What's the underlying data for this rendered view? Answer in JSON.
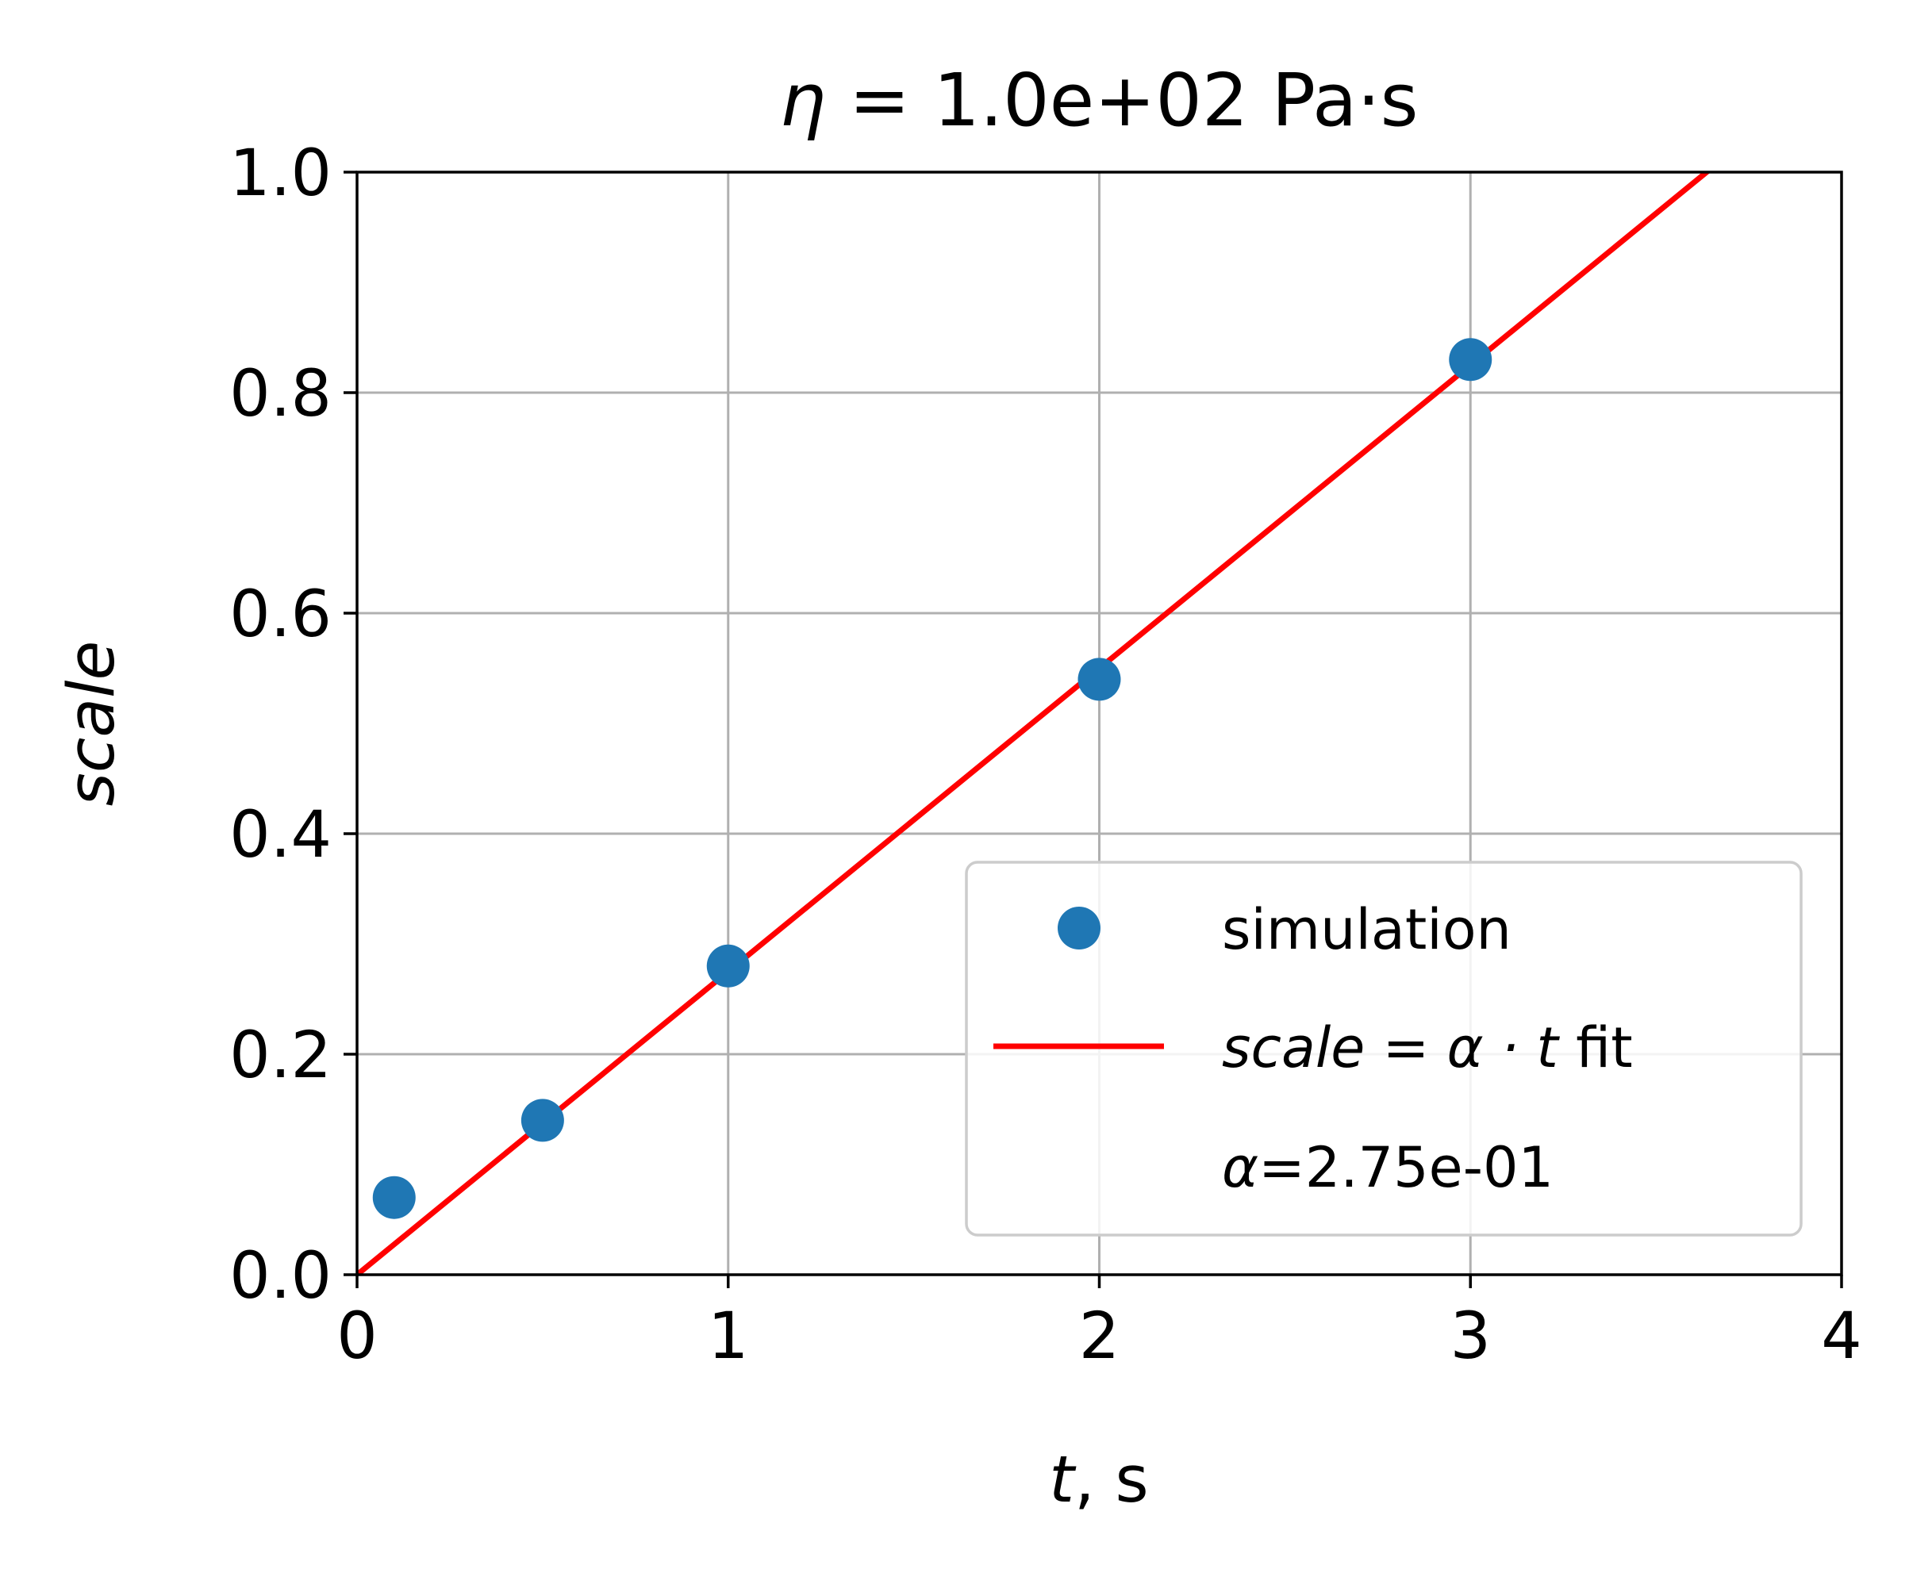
{
  "chart_data": {
    "type": "scatter",
    "title": {
      "symbol": "η",
      "text": " = 1.0e+02 Pa·s"
    },
    "xlabel": {
      "var": "t",
      "unit": ", s"
    },
    "ylabel": "scale",
    "xlim": [
      0,
      4
    ],
    "ylim": [
      0,
      1
    ],
    "xticks": [
      0,
      1,
      2,
      3,
      4
    ],
    "xtick_labels": [
      "0",
      "1",
      "2",
      "3",
      "4"
    ],
    "yticks": [
      0,
      0.2,
      0.4,
      0.6,
      0.8,
      1.0
    ],
    "ytick_labels": [
      "0.0",
      "0.2",
      "0.4",
      "0.6",
      "0.8",
      "1.0"
    ],
    "grid": true,
    "legend_position": "lower-right",
    "series": [
      {
        "name": "simulation",
        "kind": "scatter",
        "color": "#1f77b4",
        "x": [
          0.1,
          0.5,
          1.0,
          2.0,
          3.0
        ],
        "y": [
          0.07,
          0.14,
          0.28,
          0.54,
          0.83
        ]
      },
      {
        "name": "scale = α · t fit",
        "kind": "line",
        "color": "#ff0000",
        "slope": 0.275,
        "x": [
          0,
          4
        ]
      }
    ],
    "legend": [
      {
        "marker": "dot",
        "color": "#1f77b4",
        "label": "simulation"
      },
      {
        "marker": "line",
        "color": "#ff0000",
        "label_italic": "scale = α · t",
        "label_rest": " fit"
      },
      {
        "marker": "none",
        "label_italic": "α",
        "label_rest": "=2.75e-01"
      }
    ]
  }
}
